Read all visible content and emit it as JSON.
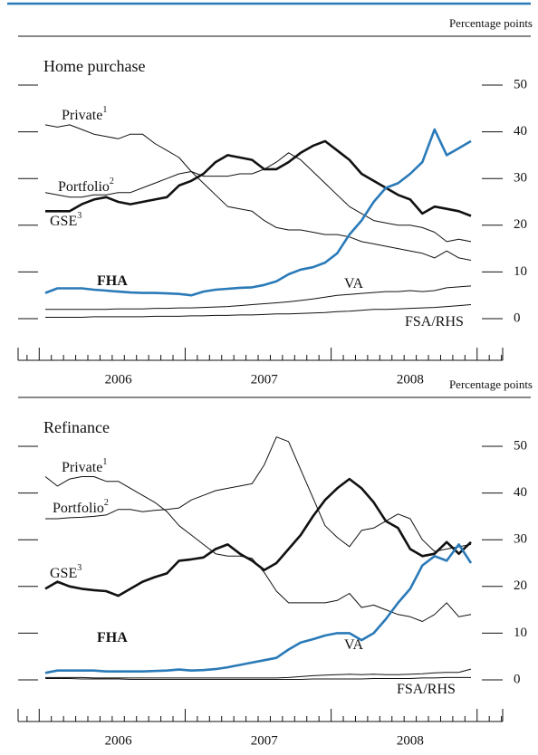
{
  "chart_data": [
    {
      "type": "line",
      "title": "Home purchase",
      "y_label": "Percentage points",
      "categories": [
        null,
        null,
        null,
        null,
        null,
        null,
        "2006",
        null,
        null,
        null,
        null,
        null,
        null,
        null,
        null,
        null,
        null,
        null,
        "2007",
        null,
        null,
        null,
        null,
        null,
        null,
        null,
        null,
        null,
        null,
        null,
        "2008",
        null,
        null,
        null,
        null,
        null
      ],
      "ylim": [
        0,
        50
      ],
      "yticks": [
        0,
        10,
        20,
        30,
        40,
        50
      ],
      "series": [
        {
          "name": "Private",
          "footnote": "1",
          "color": "#111111",
          "line_width": 1,
          "values": [
            41.5,
            41,
            41.5,
            40.5,
            39.5,
            39,
            38.5,
            39.5,
            39.5,
            37.5,
            36,
            34.5,
            31.5,
            29,
            26.5,
            24,
            23.5,
            23,
            21,
            19.5,
            19,
            19,
            18.5,
            18,
            18,
            17.5,
            16.5,
            16,
            15.5,
            15,
            14.5,
            14,
            13,
            14.5,
            13,
            12.5
          ]
        },
        {
          "name": "Portfolio",
          "footnote": "2",
          "color": "#111111",
          "line_width": 1,
          "values": [
            27,
            26.5,
            26,
            26,
            26.5,
            26.5,
            27,
            27,
            28,
            29,
            30,
            31,
            31.5,
            30.5,
            30.5,
            30.5,
            31,
            31,
            32,
            33.5,
            35.5,
            34,
            31.5,
            29,
            26.5,
            24,
            22.5,
            21,
            20.5,
            20,
            20,
            19.5,
            18.5,
            16.5,
            17,
            16.5
          ]
        },
        {
          "name": "GSE",
          "footnote": "3",
          "color": "#111111",
          "line_width": 2.6,
          "values": [
            23,
            23,
            23,
            24.5,
            25.5,
            26,
            25,
            24.5,
            25,
            25.5,
            26,
            28.5,
            29.5,
            31,
            33.5,
            35,
            34.5,
            34,
            32,
            32,
            33.5,
            35.5,
            37,
            38,
            36,
            34,
            31,
            29.5,
            28,
            26.5,
            25.5,
            22.5,
            24,
            23.5,
            23,
            22
          ]
        },
        {
          "name": "FHA",
          "color": "#2a7ab8",
          "line_width": 2.6,
          "values": [
            5.5,
            6.5,
            6.5,
            6.5,
            6.2,
            6,
            5.8,
            5.6,
            5.5,
            5.5,
            5.4,
            5.3,
            5,
            5.8,
            6.2,
            6.4,
            6.6,
            6.7,
            7.2,
            8,
            9.5,
            10.5,
            11,
            12,
            14,
            18,
            21,
            25,
            28,
            29,
            31,
            33.5,
            40.5,
            35,
            36.5,
            38
          ]
        },
        {
          "name": "VA",
          "color": "#111111",
          "line_width": 1,
          "values": [
            2,
            2,
            2,
            2,
            2,
            2,
            2.1,
            2.1,
            2.1,
            2.2,
            2.2,
            2.3,
            2.3,
            2.4,
            2.5,
            2.6,
            2.8,
            3,
            3.2,
            3.4,
            3.6,
            3.9,
            4.2,
            4.6,
            5,
            5.2,
            5.4,
            5.6,
            5.8,
            5.8,
            6,
            5.8,
            6,
            6.6,
            6.8,
            7
          ]
        },
        {
          "name": "FSA/RHS",
          "color": "#111111",
          "line_width": 1,
          "values": [
            0.3,
            0.3,
            0.3,
            0.3,
            0.4,
            0.4,
            0.4,
            0.4,
            0.4,
            0.5,
            0.5,
            0.5,
            0.6,
            0.6,
            0.7,
            0.7,
            0.8,
            0.8,
            0.9,
            1,
            1,
            1.1,
            1.2,
            1.3,
            1.5,
            1.6,
            1.8,
            2,
            2,
            2.1,
            2.2,
            2.3,
            2.4,
            2.6,
            2.8,
            3
          ]
        }
      ]
    },
    {
      "type": "line",
      "title": "Refinance",
      "y_label": "Percentage points",
      "categories": [
        null,
        null,
        null,
        null,
        null,
        null,
        "2006",
        null,
        null,
        null,
        null,
        null,
        null,
        null,
        null,
        null,
        null,
        null,
        "2007",
        null,
        null,
        null,
        null,
        null,
        null,
        null,
        null,
        null,
        null,
        null,
        "2008",
        null,
        null,
        null,
        null,
        null
      ],
      "ylim": [
        0,
        50
      ],
      "yticks": [
        0,
        10,
        20,
        30,
        40,
        50
      ],
      "series": [
        {
          "name": "Private",
          "footnote": "1",
          "color": "#111111",
          "line_width": 1,
          "values": [
            43.5,
            41.5,
            43,
            43.5,
            43.5,
            42.5,
            42.5,
            41,
            39.5,
            38,
            36,
            33,
            31,
            29,
            27,
            26.5,
            26.5,
            26,
            23,
            19,
            16.5,
            16.5,
            16.5,
            16.5,
            17,
            18.5,
            15.5,
            16,
            15,
            14,
            13.5,
            12.5,
            14,
            16.5,
            13.5,
            14
          ]
        },
        {
          "name": "Portfolio",
          "footnote": "2",
          "color": "#111111",
          "line_width": 1,
          "values": [
            34.5,
            34.5,
            34.7,
            34.8,
            35,
            35.3,
            36.5,
            36.5,
            36,
            36.3,
            36.5,
            36.8,
            38.5,
            39.5,
            40.5,
            41,
            41.5,
            42,
            46,
            52,
            51,
            45,
            39,
            33,
            30.5,
            28.5,
            32,
            32.5,
            34,
            35.5,
            34.5,
            30,
            27.5,
            28,
            28.5,
            29
          ]
        },
        {
          "name": "GSE",
          "footnote": "3",
          "color": "#111111",
          "line_width": 2.6,
          "values": [
            19.5,
            21,
            20,
            19.5,
            19.2,
            19,
            18,
            19.5,
            21,
            22,
            22.8,
            25.5,
            25.8,
            26.2,
            28,
            29,
            27,
            25.5,
            23.5,
            25,
            28,
            31,
            35,
            38.5,
            41,
            43,
            41,
            38,
            34,
            32.5,
            28,
            26.5,
            27,
            29.5,
            27,
            29.5
          ]
        },
        {
          "name": "FHA",
          "color": "#2a7ab8",
          "line_width": 2.6,
          "values": [
            1.5,
            2,
            2,
            2,
            2,
            1.8,
            1.8,
            1.8,
            1.8,
            1.9,
            2,
            2.2,
            2,
            2.1,
            2.3,
            2.7,
            3.2,
            3.7,
            4.2,
            4.7,
            6.5,
            8,
            8.7,
            9.5,
            10,
            10,
            8.5,
            10,
            13,
            16.5,
            19.5,
            24.5,
            26.5,
            25.5,
            29,
            25
          ]
        },
        {
          "name": "VA",
          "color": "#111111",
          "line_width": 1,
          "values": [
            0.5,
            0.5,
            0.5,
            0.5,
            0.4,
            0.4,
            0.4,
            0.4,
            0.4,
            0.4,
            0.4,
            0.4,
            0.4,
            0.4,
            0.4,
            0.4,
            0.4,
            0.4,
            0.4,
            0.4,
            0.5,
            0.7,
            0.9,
            1,
            1.1,
            1.2,
            1.1,
            1.2,
            1.1,
            1.1,
            1.2,
            1.3,
            1.5,
            1.6,
            1.6,
            2.3
          ]
        },
        {
          "name": "FSA/RHS",
          "color": "#111111",
          "line_width": 1,
          "values": [
            0.3,
            0.3,
            0.3,
            0.2,
            0.2,
            0.2,
            0.2,
            0.1,
            0.1,
            0.1,
            0.1,
            0.1,
            0.1,
            0.1,
            0.1,
            0.1,
            0.1,
            0.1,
            0.1,
            0.1,
            0.1,
            0.1,
            0.2,
            0.2,
            0.2,
            0.2,
            0.2,
            0.3,
            0.3,
            0.3,
            0.3,
            0.4,
            0.4,
            0.5,
            0.5,
            0.5
          ]
        }
      ]
    }
  ]
}
